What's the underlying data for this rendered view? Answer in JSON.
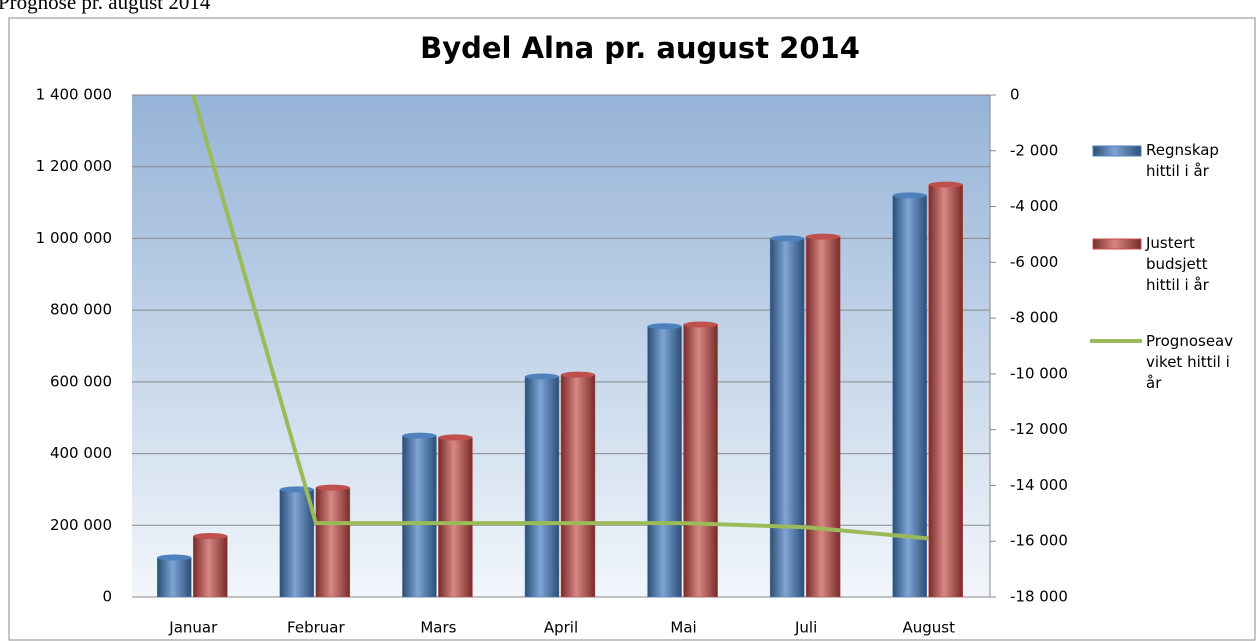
{
  "header": {
    "title": "Prognose pr. august 2014"
  },
  "chart_data": {
    "type": "bar",
    "title": "Bydel Alna pr. august 2014",
    "categories": [
      "Januar",
      "Februar",
      "Mars",
      "April",
      "Mai",
      "Juli",
      "August"
    ],
    "series": [
      {
        "name": "Regnskap hittil i år",
        "color": "#4f81bd",
        "values": [
          110000,
          300000,
          450000,
          615000,
          755000,
          1000000,
          1120000
        ]
      },
      {
        "name": "Justert budsjett hittil i år",
        "color": "#c0504d",
        "values": [
          170000,
          305000,
          445000,
          620000,
          760000,
          1005000,
          1150000
        ]
      },
      {
        "name": "Prognoseavviket hittil i år",
        "color": "#9bbb59",
        "type": "line",
        "axis": "y2",
        "values": [
          0,
          -15350,
          -15350,
          -15350,
          -15350,
          -15500,
          -15900
        ]
      }
    ],
    "ylim": [
      0,
      1400000
    ],
    "yticks": [
      0,
      {
        "value": 200000,
        "label": "200 000"
      },
      {
        "value": 400000,
        "label": "400 000"
      },
      {
        "value": 600000,
        "label": "600 000"
      },
      {
        "value": 800000,
        "label": "800 000"
      },
      {
        "value": 1000000,
        "label": "1 000 000"
      },
      {
        "value": 1200000,
        "label": "1 200 000"
      },
      {
        "value": 1400000,
        "label": "1 400 000"
      }
    ],
    "y2lim": [
      -18000,
      0
    ],
    "y2ticks": [
      {
        "value": -18000,
        "label": "-18 000"
      },
      {
        "value": -16000,
        "label": "-16 000"
      },
      {
        "value": -14000,
        "label": "-14 000"
      },
      {
        "value": -12000,
        "label": "-12 000"
      },
      {
        "value": -10000,
        "label": "-10 000"
      },
      {
        "value": -8000,
        "label": "-8 000"
      },
      {
        "value": -6000,
        "label": "-6 000"
      },
      {
        "value": -4000,
        "label": "-4 000"
      },
      {
        "value": -2000,
        "label": "-2 000"
      },
      0
    ],
    "grid": true,
    "legend": "right"
  }
}
